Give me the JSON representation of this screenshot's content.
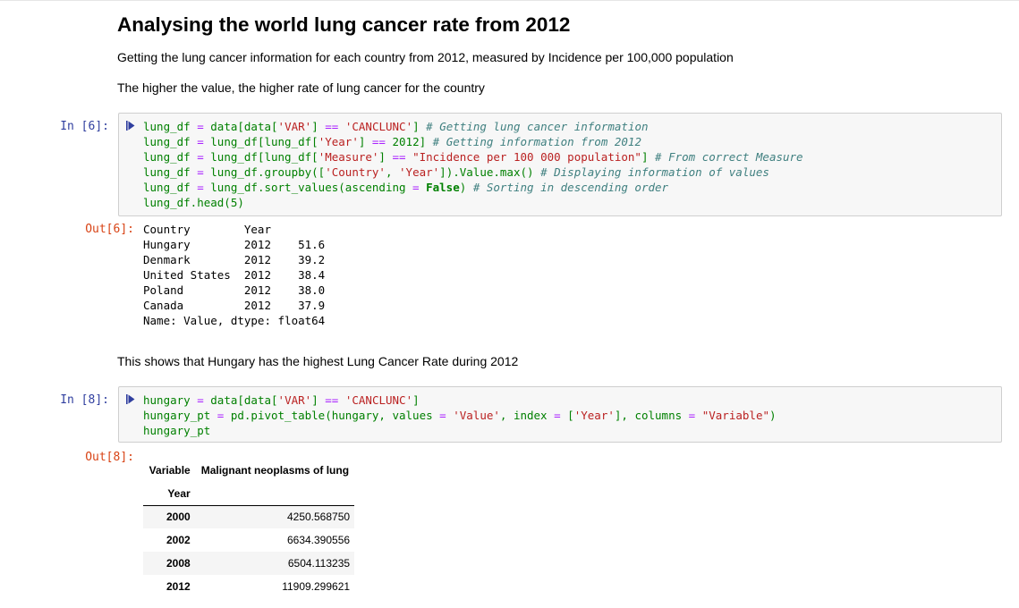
{
  "markdown": {
    "title": "Analysing the world lung cancer rate from 2012",
    "para1": "Getting the lung cancer information for each country from 2012, measured by Incidence per 100,000 population",
    "para2": "The higher the value, the higher rate of lung cancer for the country",
    "para3": "This shows that Hungary has the highest Lung Cancer Rate during 2012"
  },
  "cell6": {
    "in_prompt": "In [6]:",
    "out_prompt": "Out[6]:",
    "code_lines": [
      [
        [
          "n",
          "lung_df "
        ],
        [
          "o",
          "="
        ],
        [
          "n",
          " data[data["
        ],
        [
          "s",
          "'VAR'"
        ],
        [
          "n",
          "] "
        ],
        [
          "o",
          "=="
        ],
        [
          "n",
          " "
        ],
        [
          "s",
          "'CANCLUNC'"
        ],
        [
          "n",
          "] "
        ],
        [
          "c",
          "# Getting lung cancer information"
        ]
      ],
      [
        [
          "n",
          "lung_df "
        ],
        [
          "o",
          "="
        ],
        [
          "n",
          " lung_df[lung_df["
        ],
        [
          "s",
          "'Year'"
        ],
        [
          "n",
          "] "
        ],
        [
          "o",
          "=="
        ],
        [
          "n",
          " "
        ],
        [
          "num",
          "2012"
        ],
        [
          "n",
          "] "
        ],
        [
          "c",
          "# Getting information from 2012"
        ]
      ],
      [
        [
          "n",
          "lung_df "
        ],
        [
          "o",
          "="
        ],
        [
          "n",
          " lung_df[lung_df["
        ],
        [
          "s",
          "'Measure'"
        ],
        [
          "n",
          "] "
        ],
        [
          "o",
          "=="
        ],
        [
          "n",
          " "
        ],
        [
          "s",
          "\"Incidence per 100 000 population\""
        ],
        [
          "n",
          "] "
        ],
        [
          "c",
          "# From correct Measure"
        ]
      ],
      [
        [
          "n",
          "lung_df "
        ],
        [
          "o",
          "="
        ],
        [
          "n",
          " lung_df.groupby(["
        ],
        [
          "s",
          "'Country'"
        ],
        [
          "n",
          ", "
        ],
        [
          "s",
          "'Year'"
        ],
        [
          "n",
          "]).Value.max() "
        ],
        [
          "c",
          "# Displaying information of values"
        ]
      ],
      [
        [
          "n",
          "lung_df "
        ],
        [
          "o",
          "="
        ],
        [
          "n",
          " lung_df.sort_values(ascending "
        ],
        [
          "o",
          "="
        ],
        [
          "n",
          " "
        ],
        [
          "k",
          "False"
        ],
        [
          "n",
          ") "
        ],
        [
          "c",
          "# Sorting in descending order"
        ]
      ],
      [
        [
          "n",
          "lung_df.head("
        ],
        [
          "num",
          "5"
        ],
        [
          "n",
          ")"
        ]
      ]
    ],
    "output_lines": [
      "Country        Year",
      "Hungary        2012    51.6",
      "Denmark        2012    39.2",
      "United States  2012    38.4",
      "Poland         2012    38.0",
      "Canada         2012    37.9",
      "Name: Value, dtype: float64"
    ]
  },
  "cell8": {
    "in_prompt": "In [8]:",
    "out_prompt": "Out[8]:",
    "code_lines": [
      [
        [
          "n",
          "hungary "
        ],
        [
          "o",
          "="
        ],
        [
          "n",
          " data[data["
        ],
        [
          "s",
          "'VAR'"
        ],
        [
          "n",
          "] "
        ],
        [
          "o",
          "=="
        ],
        [
          "n",
          " "
        ],
        [
          "s",
          "'CANCLUNC'"
        ],
        [
          "n",
          "]"
        ]
      ],
      [
        [
          "n",
          "hungary_pt "
        ],
        [
          "o",
          "="
        ],
        [
          "n",
          " pd.pivot_table(hungary, values "
        ],
        [
          "o",
          "="
        ],
        [
          "n",
          " "
        ],
        [
          "s",
          "'Value'"
        ],
        [
          "n",
          ", index "
        ],
        [
          "o",
          "="
        ],
        [
          "n",
          " ["
        ],
        [
          "s",
          "'Year'"
        ],
        [
          "n",
          "], columns "
        ],
        [
          "o",
          "="
        ],
        [
          "n",
          " "
        ],
        [
          "s",
          "\"Variable\""
        ],
        [
          "n",
          ")"
        ]
      ],
      [
        [
          "n",
          "hungary_pt"
        ]
      ]
    ],
    "table": {
      "col_header_label": "Variable",
      "col_header_value": "Malignant neoplasms of lung",
      "index_name": "Year",
      "rows": [
        {
          "year": "2000",
          "value": "4250.568750"
        },
        {
          "year": "2002",
          "value": "6634.390556"
        },
        {
          "year": "2008",
          "value": "6504.113235"
        },
        {
          "year": "2012",
          "value": "11909.299621"
        }
      ]
    }
  },
  "icons": {
    "collapse": "collapse-arrow-icon"
  }
}
